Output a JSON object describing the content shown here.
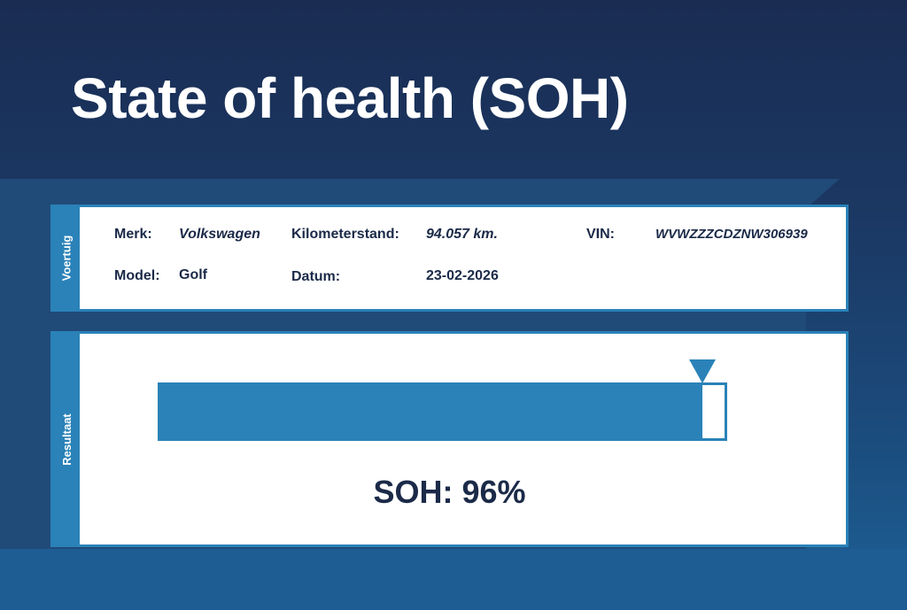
{
  "title": "State of health (SOH)",
  "vehicle": {
    "section_label": "Voertuig",
    "merk_label": "Merk:",
    "merk": "Volkswagen",
    "km_label": "Kilometerstand:",
    "km": "94.057 km.",
    "vin_label": "VIN:",
    "vin": "WVWZZZCDZNW306939",
    "model_label": "Model:",
    "model": "Golf",
    "datum_label": "Datum:",
    "datum": "23-02-2026"
  },
  "result": {
    "section_label": "Resultaat",
    "soh_percent": 96,
    "soh_text": "SOH: 96%",
    "accent_color": "#2a82b8"
  }
}
